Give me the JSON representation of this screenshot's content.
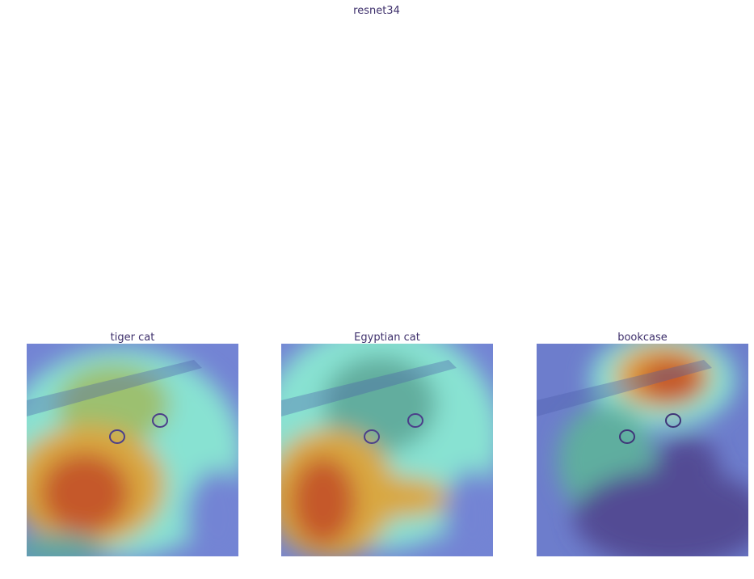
{
  "title": "resnet34",
  "panels": [
    {
      "title": "tiger cat"
    },
    {
      "title": "Egyptian cat"
    },
    {
      "title": "bookcase"
    }
  ]
}
